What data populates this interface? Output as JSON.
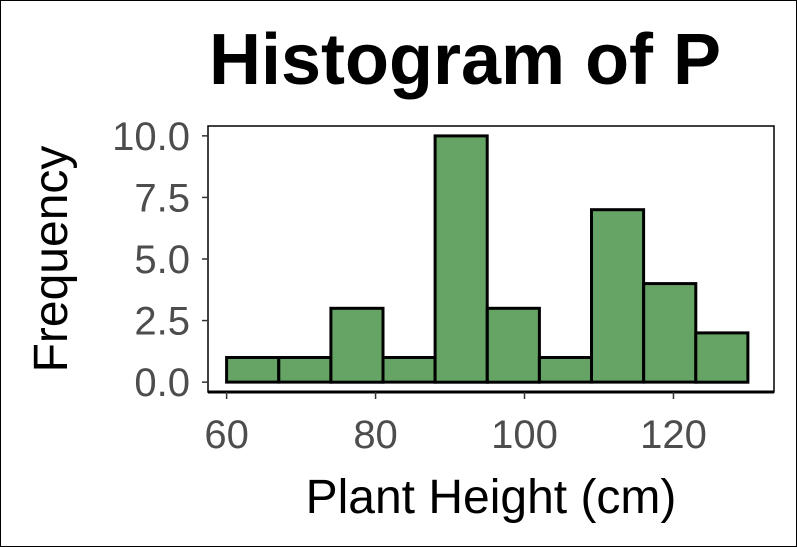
{
  "chart_data": {
    "type": "bar",
    "title": "Histogram of P",
    "xlabel": "Plant Height (cm)",
    "ylabel": "Frequency",
    "xlim": [
      57.5,
      133.5
    ],
    "ylim": [
      -0.4,
      10.4
    ],
    "x_ticks": [
      60,
      80,
      100,
      120
    ],
    "x_tick_labels": [
      "60",
      "80",
      "100",
      "120"
    ],
    "y_ticks": [
      0,
      2.5,
      5,
      7.5,
      10
    ],
    "y_tick_labels": [
      "0.0",
      "2.5",
      "5.0",
      "7.5",
      "10.0"
    ],
    "bin_edges": [
      60,
      67,
      74,
      81,
      88,
      95,
      102,
      109,
      116,
      123,
      130
    ],
    "values": [
      1,
      1,
      3,
      1,
      10,
      3,
      1,
      7,
      4,
      2
    ],
    "grid": false,
    "colors": {
      "bar_fill": "#66a466",
      "bar_stroke": "#000000"
    }
  }
}
